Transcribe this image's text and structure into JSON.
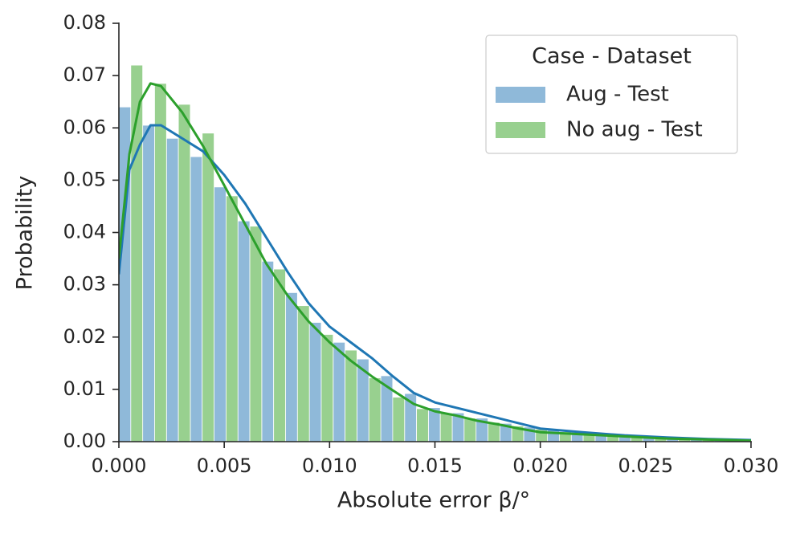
{
  "chart_data": {
    "type": "histogram",
    "xlabel": "Absolute error β/°",
    "ylabel": "Probability",
    "xlim": [
      0,
      0.03
    ],
    "ylim": [
      0,
      0.08
    ],
    "xticks": [
      {
        "value": 0,
        "label": "0.000"
      },
      {
        "value": 0.005,
        "label": "0.005"
      },
      {
        "value": 0.01,
        "label": "0.010"
      },
      {
        "value": 0.015,
        "label": "0.015"
      },
      {
        "value": 0.02,
        "label": "0.020"
      },
      {
        "value": 0.025,
        "label": "0.025"
      },
      {
        "value": 0.03,
        "label": "0.030"
      }
    ],
    "yticks": [
      {
        "value": 0,
        "label": "0.00"
      },
      0.01,
      0.02,
      0.03,
      0.04,
      0.05,
      0.06,
      0.07,
      0.08
    ],
    "bins": [
      0,
      0.00113,
      0.00226,
      0.00339,
      0.00452,
      0.00565,
      0.00678,
      0.00791,
      0.00904,
      0.01017,
      0.0113,
      0.01243,
      0.01356,
      0.01469,
      0.01582,
      0.01695,
      0.01808,
      0.01921,
      0.02034,
      0.02147,
      0.0226,
      0.02373,
      0.02486,
      0.02599,
      0.02712,
      0.02825,
      0.02938
    ],
    "series": [
      {
        "name": "Aug - Test",
        "color": "#8fb9d9",
        "values": [
          0.064,
          0.0605,
          0.058,
          0.0545,
          0.0487,
          0.0422,
          0.0345,
          0.0285,
          0.0228,
          0.019,
          0.0158,
          0.0126,
          0.0092,
          0.0065,
          0.0055,
          0.0045,
          0.0035,
          0.0028,
          0.0022,
          0.0018,
          0.0014,
          0.0011,
          0.0009,
          0.0007,
          0.0005,
          0.0004
        ]
      },
      {
        "name": "No aug - Test",
        "color": "#98d08f",
        "values": [
          0.072,
          0.0685,
          0.0645,
          0.059,
          0.047,
          0.0412,
          0.033,
          0.026,
          0.0205,
          0.0175,
          0.0122,
          0.0085,
          0.0063,
          0.0055,
          0.0045,
          0.0037,
          0.003,
          0.0024,
          0.0019,
          0.0015,
          0.0012,
          0.0009,
          0.0007,
          0.0006,
          0.0005,
          0.0003
        ]
      }
    ],
    "lines": {
      "x": [
        0,
        0.0005,
        0.001,
        0.0015,
        0.002,
        0.003,
        0.004,
        0.005,
        0.006,
        0.007,
        0.008,
        0.009,
        0.01,
        0.011,
        0.012,
        0.013,
        0.014,
        0.015,
        0.016,
        0.017,
        0.018,
        0.019,
        0.02,
        0.022,
        0.024,
        0.026,
        0.028,
        0.03
      ],
      "series": [
        {
          "color": "#1f77b4",
          "values": [
            0.032,
            0.052,
            0.0568,
            0.0605,
            0.0605,
            0.058,
            0.0555,
            0.051,
            0.0455,
            0.039,
            0.0325,
            0.0265,
            0.022,
            0.019,
            0.016,
            0.0125,
            0.0093,
            0.0075,
            0.0065,
            0.0055,
            0.0045,
            0.0035,
            0.0025,
            0.0018,
            0.0012,
            0.0008,
            0.0005,
            0.0003
          ]
        },
        {
          "color": "#2ca02c",
          "values": [
            0.035,
            0.055,
            0.065,
            0.0685,
            0.068,
            0.063,
            0.0565,
            0.049,
            0.0415,
            0.034,
            0.028,
            0.023,
            0.019,
            0.0155,
            0.0125,
            0.0098,
            0.0072,
            0.0058,
            0.005,
            0.004,
            0.0033,
            0.0025,
            0.0018,
            0.0014,
            0.001,
            0.0006,
            0.0004,
            0.0002
          ]
        }
      ]
    },
    "legend": {
      "title": "Case - Dataset",
      "position": "upper right"
    }
  }
}
